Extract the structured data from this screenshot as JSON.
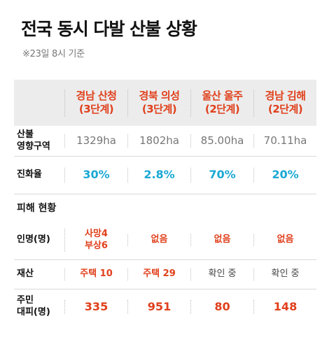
{
  "title": "전국 동시 다발 산불 상황",
  "note": "※23일 8시 기준",
  "columns": [
    {
      "name": "경남 산청",
      "level": "(3단계)"
    },
    {
      "name": "경북 의성",
      "level": "(3단계)"
    },
    {
      "name": "울산 울주",
      "level": "(2단계)"
    },
    {
      "name": "경남 김해",
      "level": "(2단계)"
    }
  ],
  "rows": {
    "area": {
      "label_1": "산불",
      "label_2": "영향구역",
      "values": [
        "1329ha",
        "1802ha",
        "85.00ha",
        "70.11ha"
      ]
    },
    "containment": {
      "label": "진화율",
      "values": [
        "30%",
        "2.8%",
        "70%",
        "20%"
      ]
    }
  },
  "damage": {
    "section_label": "피해 현황",
    "casualties": {
      "label": "인명(명)",
      "values": [
        [
          "사망4",
          "부상6"
        ],
        [
          "없음"
        ],
        [
          "없음"
        ],
        [
          "없음"
        ]
      ]
    },
    "property": {
      "label": "재산",
      "values": [
        "주택 10",
        "주택 29",
        "확인 중",
        "확인 중"
      ]
    },
    "evacuation": {
      "label_1": "주민",
      "label_2": "대피(명)",
      "values": [
        "335",
        "951",
        "80",
        "148"
      ]
    }
  },
  "colors": {
    "accent_red": "#e0401c",
    "accent_cyan": "#1aa8d4",
    "header_bg": "#ececec",
    "muted": "#777777"
  }
}
